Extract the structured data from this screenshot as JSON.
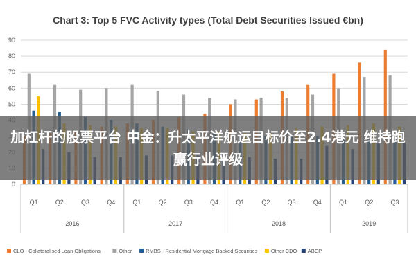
{
  "chart_data": {
    "type": "bar",
    "title": "Chart 3: Top 5 FVC Activity types (Total Debt Securities Issued €bn)",
    "xlabel": "",
    "ylabel": "",
    "ylim": [
      0,
      90
    ],
    "yticks": [
      0,
      10,
      20,
      30,
      40,
      50,
      60,
      70,
      80,
      90
    ],
    "grid": true,
    "legend_position": "bottom",
    "categories": [
      "Q1",
      "Q2",
      "Q3",
      "Q4",
      "Q1",
      "Q2",
      "Q3",
      "Q4",
      "Q1",
      "Q2",
      "Q3",
      "Q4",
      "Q1",
      "Q2",
      "Q3"
    ],
    "year_groups": [
      {
        "label": "2016",
        "count": 4
      },
      {
        "label": "2017",
        "count": 4
      },
      {
        "label": "2018",
        "count": 4
      },
      {
        "label": "2019",
        "count": 3
      }
    ],
    "series": [
      {
        "name": "CLO - Collateralised Loan Obligations",
        "color": "#ED7D31",
        "values": [
          30,
          32,
          33,
          36,
          38,
          40,
          42,
          44,
          50,
          53,
          58,
          62,
          69,
          76,
          84
        ]
      },
      {
        "name": "Other",
        "color": "#A5A5A5",
        "values": [
          69,
          62,
          59,
          60,
          62,
          58,
          56,
          54,
          53,
          54,
          54,
          56,
          60,
          67,
          68
        ]
      },
      {
        "name": "RMBS - Residential Mortgage Backed Securities",
        "color": "#255E91",
        "values": [
          46,
          45,
          42,
          40,
          38,
          36,
          34,
          32,
          31,
          30,
          30,
          30,
          29,
          28,
          28
        ]
      },
      {
        "name": "Other CDO",
        "color": "#FFC000",
        "values": [
          55,
          38,
          37,
          36,
          35,
          35,
          33,
          33,
          32,
          32,
          35,
          36,
          37,
          38,
          36
        ]
      },
      {
        "name": "ABCP",
        "color": "#264478",
        "values": [
          22,
          20,
          17,
          17,
          18,
          18,
          18,
          16,
          17,
          16,
          16,
          24,
          22,
          26,
          26
        ]
      }
    ]
  },
  "overlay": {
    "text": "加杠杆的股票平台 中金：升太平洋航运目标价至2.4港元 维持跑赢行业评级"
  }
}
